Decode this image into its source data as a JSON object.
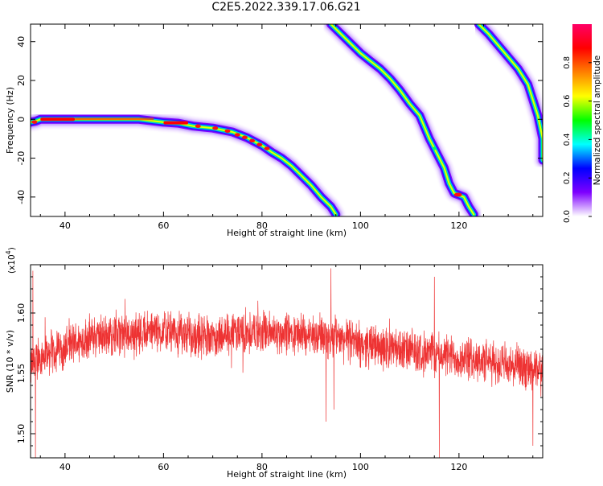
{
  "figure": {
    "title": "C2E5.2022.339.17.06.G21"
  },
  "chart_data": [
    {
      "type": "heatmap",
      "xlabel": "Height of straight line (km)",
      "ylabel": "Frequency (Hz)",
      "xlim": [
        33,
        137
      ],
      "ylim": [
        -50,
        49
      ],
      "x_ticks": [
        "40",
        "60",
        "80",
        "100",
        "120"
      ],
      "x_tick_values": [
        40,
        60,
        80,
        100,
        120
      ],
      "y_ticks": [
        "40",
        "20",
        "0",
        "-20",
        "-40"
      ],
      "y_tick_values": [
        40,
        20,
        0,
        -20,
        -40
      ],
      "colorbar": {
        "label": "Normalized spectral amplitude",
        "range": [
          0,
          1
        ],
        "ticks": [
          "0.0",
          "0.2",
          "0.4",
          "0.6",
          "0.8"
        ],
        "tick_values": [
          0.0,
          0.2,
          0.4,
          0.6,
          0.8
        ],
        "colors": [
          "#ffffff",
          "#7e00ff",
          "#0000ff",
          "#00ffff",
          "#00ff00",
          "#ffff00",
          "#ff8000",
          "#ff0000",
          "#ff0066"
        ]
      },
      "tracks": [
        {
          "name": "track-1",
          "points": [
            [
              33,
              -1.5
            ],
            [
              34,
              -1
            ],
            [
              35,
              0
            ],
            [
              40,
              0
            ],
            [
              50,
              0
            ],
            [
              55,
              0
            ],
            [
              60,
              -1.5
            ],
            [
              63,
              -2
            ],
            [
              66,
              -3.5
            ],
            [
              70,
              -4.5
            ],
            [
              74,
              -6.5
            ],
            [
              77,
              -9.5
            ],
            [
              80,
              -13.5
            ],
            [
              82,
              -17
            ],
            [
              84,
              -20
            ],
            [
              86,
              -24
            ],
            [
              88,
              -29
            ],
            [
              90,
              -34
            ],
            [
              92,
              -40
            ],
            [
              94,
              -45
            ],
            [
              95,
              -49
            ]
          ],
          "core_value": 0.88
        },
        {
          "name": "track-2",
          "points": [
            [
              94,
              49
            ],
            [
              96,
              44
            ],
            [
              98,
              39
            ],
            [
              100,
              34
            ],
            [
              102,
              30
            ],
            [
              104,
              26
            ],
            [
              106,
              21
            ],
            [
              108,
              15
            ],
            [
              110,
              8
            ],
            [
              112,
              2
            ],
            [
              114,
              -10
            ],
            [
              115,
              -15
            ],
            [
              117,
              -25
            ],
            [
              118,
              -33
            ],
            [
              119,
              -38
            ],
            [
              120,
              -39
            ],
            [
              121,
              -40
            ],
            [
              122,
              -45
            ],
            [
              123,
              -49
            ]
          ],
          "core_value": 0.7
        },
        {
          "name": "track-3",
          "points": [
            [
              124,
              49
            ],
            [
              126,
              44
            ],
            [
              128,
              38
            ],
            [
              130,
              32
            ],
            [
              132,
              26
            ],
            [
              134,
              18
            ],
            [
              135,
              10
            ],
            [
              136,
              2
            ],
            [
              137,
              -10
            ],
            [
              137,
              -21
            ]
          ],
          "core_value": 0.6
        }
      ]
    },
    {
      "type": "line",
      "xlabel": "Height of straight line (km)",
      "ylabel": "SNR (10 * v/v)",
      "y_multiplier": "(x10",
      "y_multiplier_exponent": "4",
      "y_multiplier_close": ")",
      "xlim": [
        33,
        137
      ],
      "ylim": [
        1.48,
        1.64
      ],
      "x_ticks": [
        "40",
        "60",
        "80",
        "100",
        "120"
      ],
      "x_tick_values": [
        40,
        60,
        80,
        100,
        120
      ],
      "y_ticks": [
        "1.60",
        "1.55",
        "1.50"
      ],
      "y_tick_values": [
        1.6,
        1.55,
        1.5
      ],
      "series": [
        {
          "color": "#ee3333",
          "trend": [
            [
              33,
              1.555
            ],
            [
              35,
              1.565
            ],
            [
              40,
              1.572
            ],
            [
              45,
              1.58
            ],
            [
              50,
              1.582
            ],
            [
              55,
              1.584
            ],
            [
              60,
              1.584
            ],
            [
              65,
              1.582
            ],
            [
              70,
              1.581
            ],
            [
              75,
              1.583
            ],
            [
              80,
              1.584
            ],
            [
              85,
              1.583
            ],
            [
              90,
              1.582
            ],
            [
              95,
              1.58
            ],
            [
              100,
              1.574
            ],
            [
              105,
              1.572
            ],
            [
              110,
              1.568
            ],
            [
              115,
              1.566
            ],
            [
              120,
              1.563
            ],
            [
              125,
              1.56
            ],
            [
              130,
              1.556
            ],
            [
              137,
              1.55
            ]
          ],
          "noise_amplitude": 0.018,
          "spikes": [
            [
              33.5,
              1.635
            ],
            [
              34,
              1.48
            ],
            [
              94,
              1.637
            ],
            [
              94.6,
              1.52
            ],
            [
              116,
              1.48
            ],
            [
              115,
              1.63
            ],
            [
              135,
              1.49
            ],
            [
              93,
              1.51
            ]
          ]
        }
      ]
    }
  ]
}
